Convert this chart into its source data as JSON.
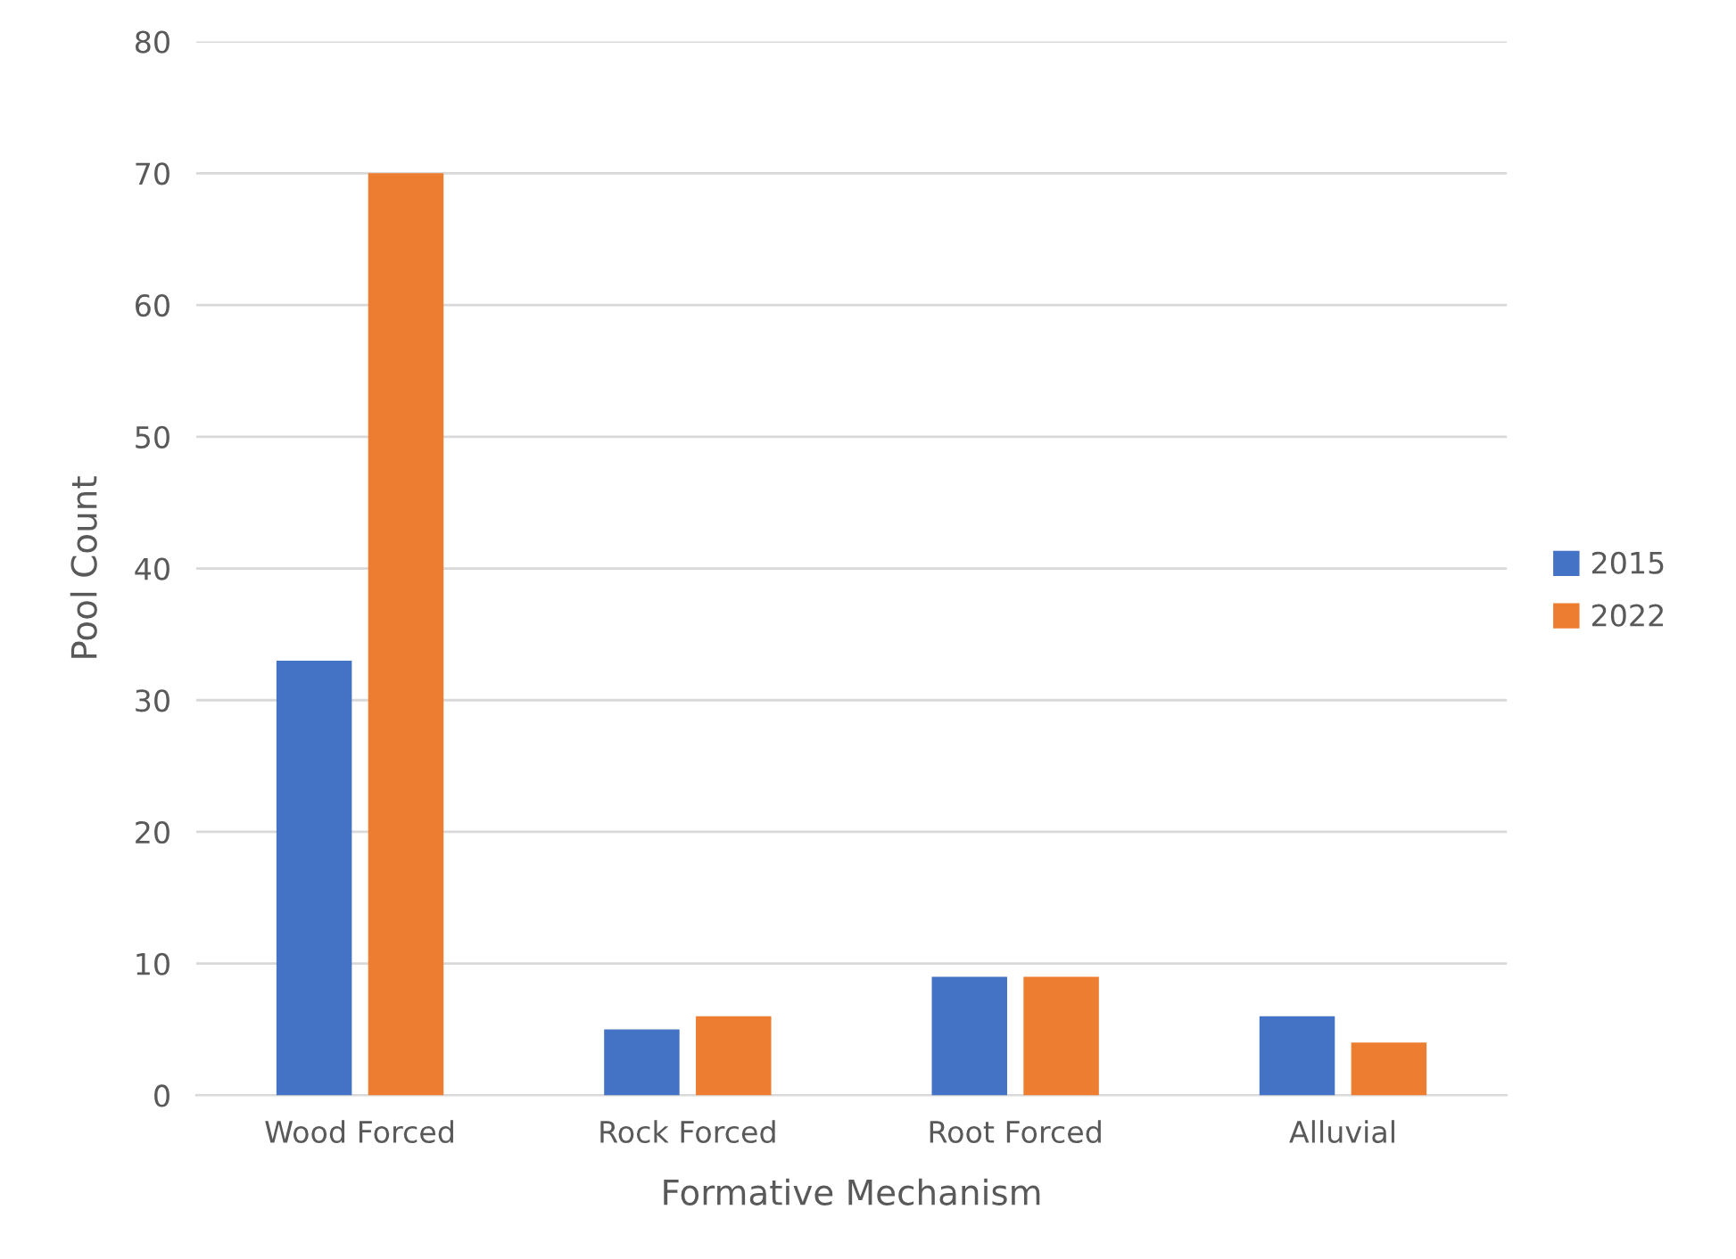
{
  "chart_data": {
    "type": "bar",
    "xlabel": "Formative Mechanism",
    "ylabel": "Pool Count",
    "categories": [
      "Wood Forced",
      "Rock Forced",
      "Root Forced",
      "Alluvial"
    ],
    "series": [
      {
        "name": "2015",
        "color": "#4472c4",
        "values": [
          33,
          5,
          9,
          6
        ]
      },
      {
        "name": "2022",
        "color": "#ed7d31",
        "values": [
          70,
          6,
          9,
          4
        ]
      }
    ],
    "ylim": [
      0,
      80
    ],
    "yticks": [
      0,
      10,
      20,
      30,
      40,
      50,
      60,
      70,
      80
    ],
    "grid": "y",
    "legend": "right"
  }
}
